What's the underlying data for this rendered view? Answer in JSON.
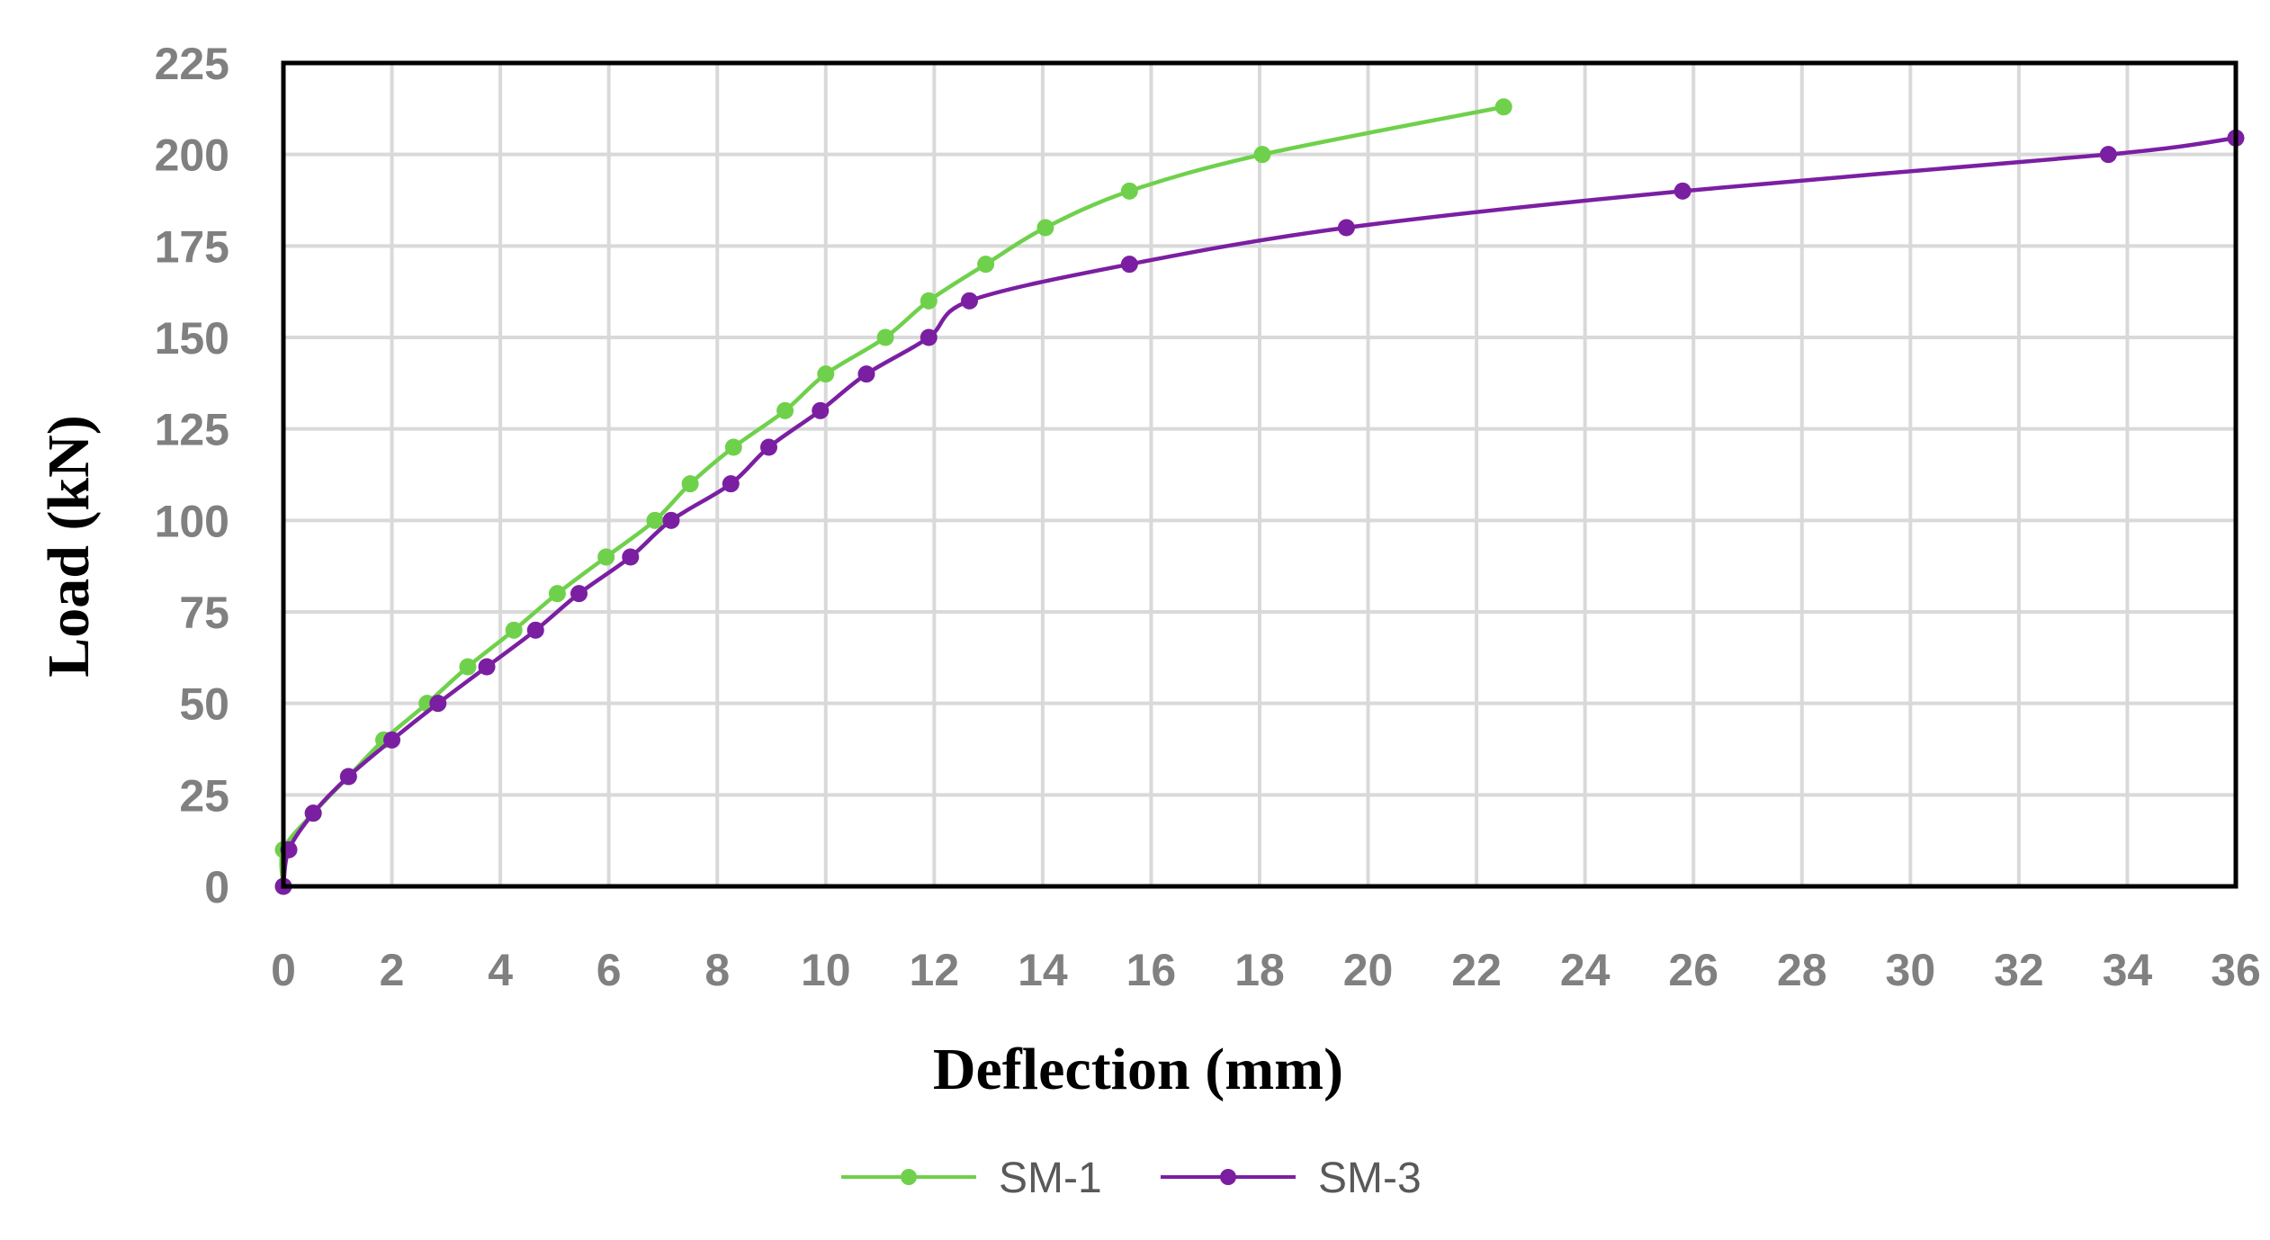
{
  "chart_data": {
    "type": "line",
    "title": "",
    "xlabel": "Deflection (mm)",
    "ylabel": "Load (kN)",
    "xlim": [
      0,
      36
    ],
    "ylim": [
      0,
      225
    ],
    "xticks": [
      0,
      2,
      4,
      6,
      8,
      10,
      12,
      14,
      16,
      18,
      20,
      22,
      24,
      26,
      28,
      30,
      32,
      34,
      36
    ],
    "yticks": [
      0,
      25,
      50,
      75,
      100,
      125,
      150,
      175,
      200,
      225
    ],
    "grid": true,
    "legend_position": "bottom",
    "series": [
      {
        "name": "SM-1",
        "color": "#6fd14b",
        "marker": "circle",
        "points": [
          [
            0.0,
            0
          ],
          [
            0.0,
            10
          ],
          [
            0.55,
            20
          ],
          [
            1.2,
            30
          ],
          [
            1.85,
            40
          ],
          [
            2.65,
            50
          ],
          [
            3.4,
            60
          ],
          [
            4.25,
            70
          ],
          [
            5.05,
            80
          ],
          [
            5.95,
            90
          ],
          [
            6.85,
            100
          ],
          [
            7.5,
            110
          ],
          [
            8.3,
            120
          ],
          [
            9.25,
            130
          ],
          [
            10.0,
            140
          ],
          [
            11.1,
            150
          ],
          [
            11.9,
            160
          ],
          [
            12.95,
            170
          ],
          [
            14.05,
            180
          ],
          [
            15.6,
            190
          ],
          [
            18.05,
            200
          ],
          [
            22.5,
            213
          ]
        ]
      },
      {
        "name": "SM-3",
        "color": "#7b1fa2",
        "marker": "circle",
        "points": [
          [
            0.0,
            0
          ],
          [
            0.1,
            10
          ],
          [
            0.55,
            20
          ],
          [
            1.2,
            30
          ],
          [
            2.0,
            40
          ],
          [
            2.85,
            50
          ],
          [
            3.75,
            60
          ],
          [
            4.65,
            70
          ],
          [
            5.45,
            80
          ],
          [
            6.4,
            90
          ],
          [
            7.15,
            100
          ],
          [
            8.25,
            110
          ],
          [
            8.95,
            120
          ],
          [
            9.9,
            130
          ],
          [
            10.75,
            140
          ],
          [
            11.9,
            150
          ],
          [
            12.65,
            160
          ],
          [
            15.6,
            170
          ],
          [
            19.6,
            180
          ],
          [
            25.8,
            190
          ],
          [
            33.65,
            200
          ],
          [
            36.0,
            204.5
          ]
        ]
      }
    ]
  }
}
